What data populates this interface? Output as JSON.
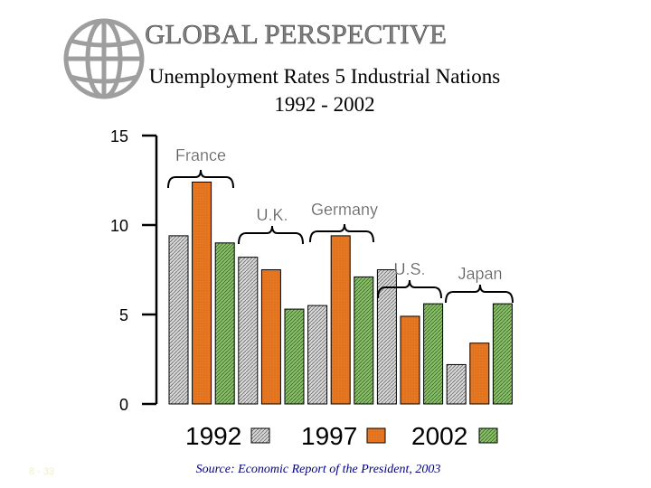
{
  "slide": {
    "title": "GLOBAL  PERSPECTIVE",
    "subtitle_line1": "Unemployment Rates 5 Industrial Nations",
    "subtitle_line2": "1992 - 2002",
    "source": "Source: Economic Report of the President, 2003",
    "slide_number": "8 - 33",
    "logo_icon": "globe-icon"
  },
  "colors": {
    "title": "#7f7f7f",
    "bar_1992": "#d9d9d9",
    "bar_1997": "#e87722",
    "bar_2002": "#8bbf6b",
    "text": "#000000",
    "label": "#5a5a5a"
  },
  "chart_data": {
    "type": "bar",
    "categories": [
      "France",
      "U.K.",
      "Germany",
      "U.S.",
      "Japan"
    ],
    "category_labels": [
      "France",
      "U.K.",
      "Germany",
      "U.S.",
      "Japan"
    ],
    "series": [
      {
        "name": "1992",
        "values": [
          9.4,
          8.2,
          5.5,
          7.5,
          2.2
        ]
      },
      {
        "name": "1997",
        "values": [
          12.4,
          7.5,
          9.4,
          4.9,
          3.4
        ]
      },
      {
        "name": "2002",
        "values": [
          9.0,
          5.3,
          7.1,
          5.6,
          5.6
        ]
      }
    ],
    "legend": [
      "1992",
      "1997",
      "2002"
    ],
    "legend_position": "bottom",
    "yticks": [
      0,
      5,
      10,
      15
    ],
    "ylim": [
      0,
      15
    ],
    "grid": false
  }
}
